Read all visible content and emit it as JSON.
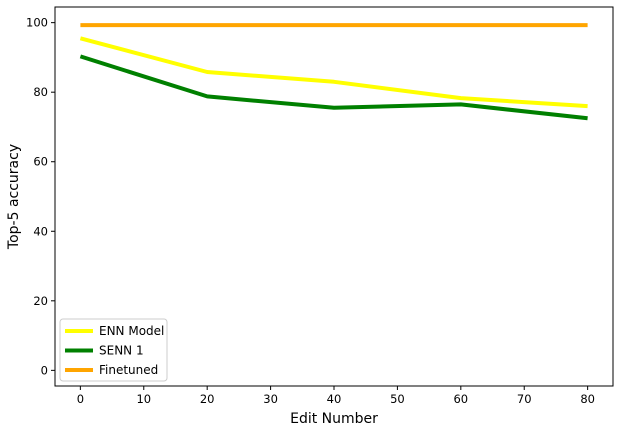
{
  "chart_data": {
    "type": "line",
    "title": "",
    "xlabel": "Edit Number",
    "ylabel": "Top-5 accuracy",
    "x": [
      0,
      20,
      40,
      60,
      80
    ],
    "xlim": [
      -4,
      84
    ],
    "ylim": [
      -4.5,
      104.5
    ],
    "xticks": [
      0,
      10,
      20,
      30,
      40,
      50,
      60,
      70,
      80
    ],
    "yticks": [
      0,
      20,
      40,
      60,
      80,
      100
    ],
    "grid": false,
    "legend_position": "lower-left",
    "series": [
      {
        "name": "ENN Model",
        "color": "#ffff00",
        "values": [
          95.5,
          85.8,
          83.0,
          78.3,
          76.0
        ]
      },
      {
        "name": "SENN 1",
        "color": "#008000",
        "values": [
          90.3,
          78.8,
          75.5,
          76.5,
          72.5
        ]
      },
      {
        "name": "Finetuned",
        "color": "#ffa500",
        "values": [
          99.3,
          99.3,
          99.3,
          99.3,
          99.3
        ]
      }
    ]
  }
}
